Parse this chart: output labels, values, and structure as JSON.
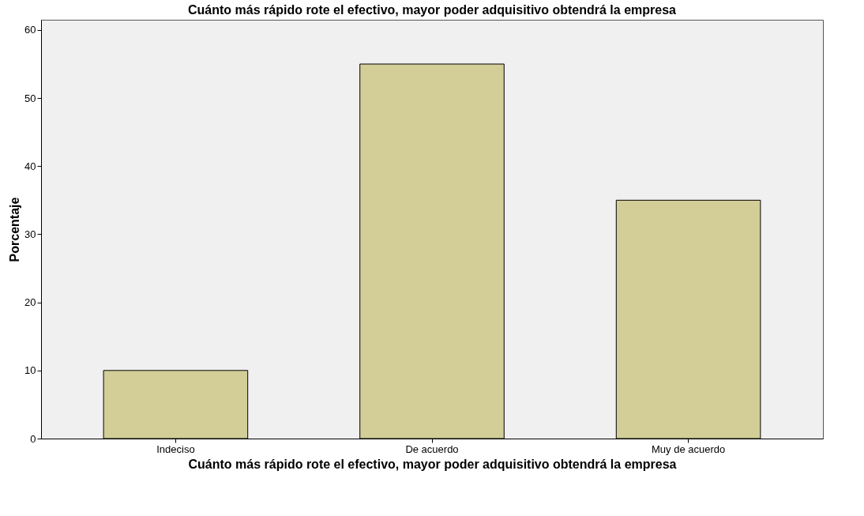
{
  "chart_data": {
    "type": "bar",
    "title": "Cuánto más rápido rote el efectivo, mayor poder adquisitivo obtendrá la empresa",
    "xlabel": "Cuánto más rápido rote el efectivo, mayor poder adquisitivo obtendrá la empresa",
    "ylabel": "Porcentaje",
    "categories": [
      "Indeciso",
      "De acuerdo",
      "Muy de acuerdo"
    ],
    "values": [
      10,
      55,
      35
    ],
    "color": "#d3ce98",
    "ylim": [
      0,
      61.5
    ],
    "yticks": [
      0,
      10,
      20,
      30,
      40,
      50,
      60
    ],
    "grid": false
  }
}
